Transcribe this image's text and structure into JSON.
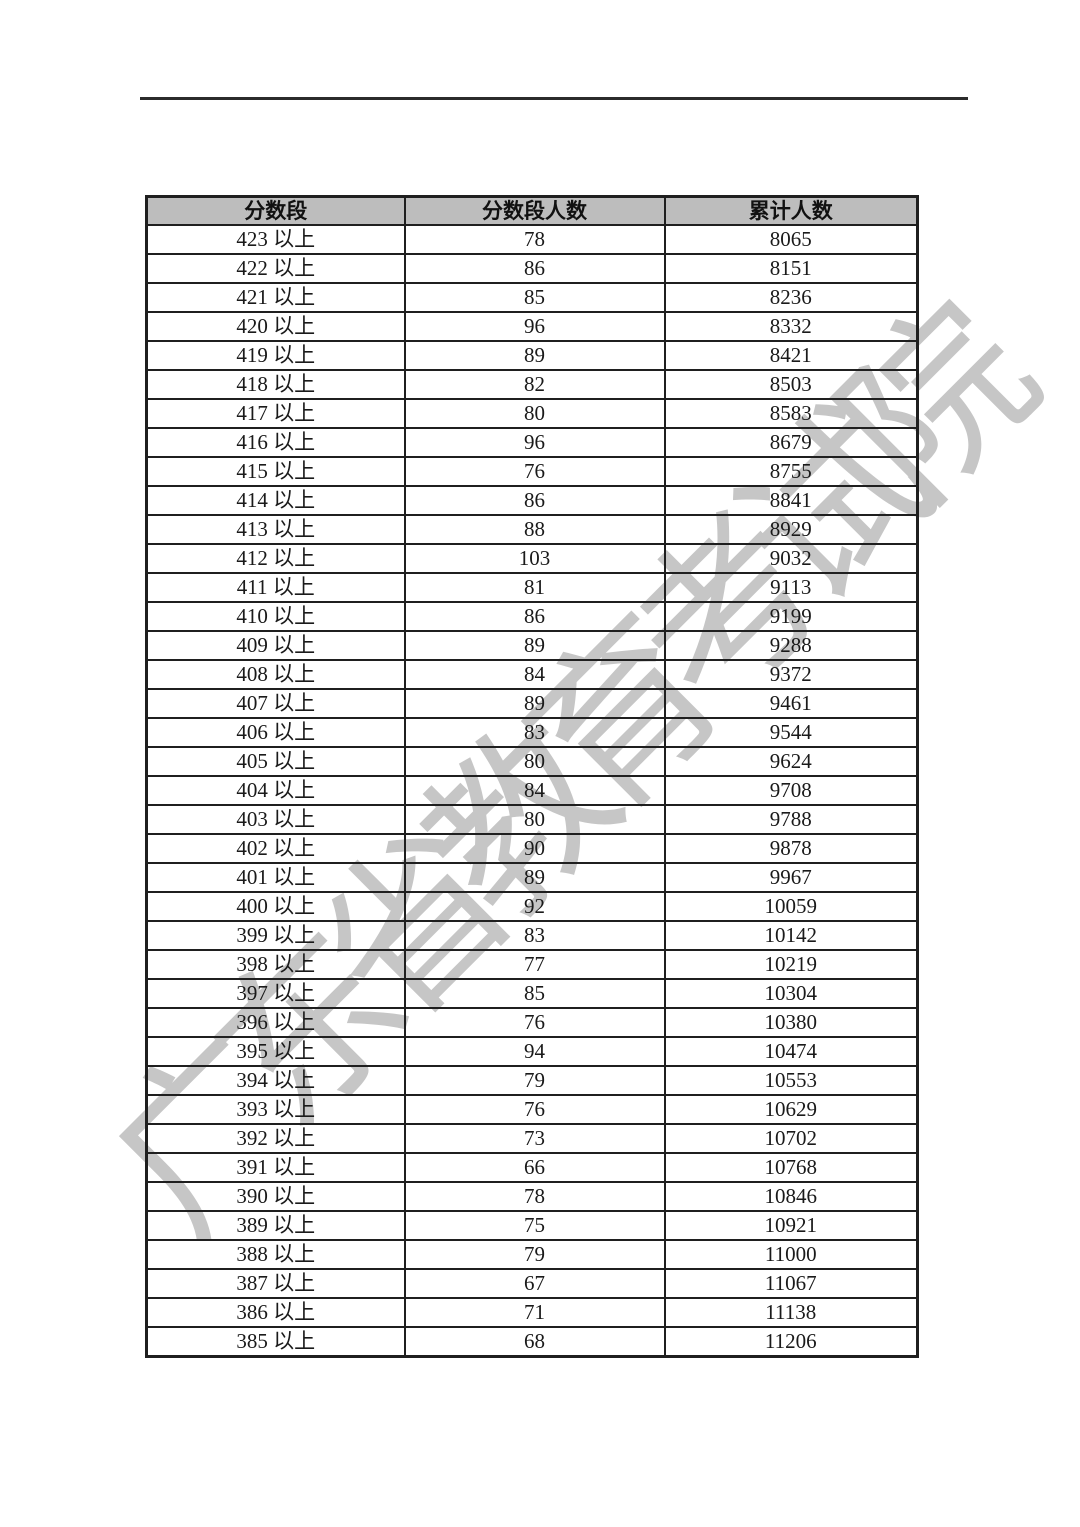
{
  "page": {
    "watermark_text": "广东省教育考试院"
  },
  "table": {
    "headers": [
      "分数段",
      "分数段人数",
      "累计人数"
    ],
    "rows": [
      [
        "423 以上",
        "78",
        "8065"
      ],
      [
        "422 以上",
        "86",
        "8151"
      ],
      [
        "421 以上",
        "85",
        "8236"
      ],
      [
        "420 以上",
        "96",
        "8332"
      ],
      [
        "419 以上",
        "89",
        "8421"
      ],
      [
        "418 以上",
        "82",
        "8503"
      ],
      [
        "417 以上",
        "80",
        "8583"
      ],
      [
        "416 以上",
        "96",
        "8679"
      ],
      [
        "415 以上",
        "76",
        "8755"
      ],
      [
        "414 以上",
        "86",
        "8841"
      ],
      [
        "413 以上",
        "88",
        "8929"
      ],
      [
        "412 以上",
        "103",
        "9032"
      ],
      [
        "411 以上",
        "81",
        "9113"
      ],
      [
        "410 以上",
        "86",
        "9199"
      ],
      [
        "409 以上",
        "89",
        "9288"
      ],
      [
        "408 以上",
        "84",
        "9372"
      ],
      [
        "407 以上",
        "89",
        "9461"
      ],
      [
        "406 以上",
        "83",
        "9544"
      ],
      [
        "405 以上",
        "80",
        "9624"
      ],
      [
        "404 以上",
        "84",
        "9708"
      ],
      [
        "403 以上",
        "80",
        "9788"
      ],
      [
        "402 以上",
        "90",
        "9878"
      ],
      [
        "401 以上",
        "89",
        "9967"
      ],
      [
        "400 以上",
        "92",
        "10059"
      ],
      [
        "399 以上",
        "83",
        "10142"
      ],
      [
        "398 以上",
        "77",
        "10219"
      ],
      [
        "397 以上",
        "85",
        "10304"
      ],
      [
        "396 以上",
        "76",
        "10380"
      ],
      [
        "395 以上",
        "94",
        "10474"
      ],
      [
        "394 以上",
        "79",
        "10553"
      ],
      [
        "393 以上",
        "76",
        "10629"
      ],
      [
        "392 以上",
        "73",
        "10702"
      ],
      [
        "391 以上",
        "66",
        "10768"
      ],
      [
        "390 以上",
        "78",
        "10846"
      ],
      [
        "389 以上",
        "75",
        "10921"
      ],
      [
        "388 以上",
        "79",
        "11000"
      ],
      [
        "387 以上",
        "67",
        "11067"
      ],
      [
        "386 以上",
        "71",
        "11138"
      ],
      [
        "385 以上",
        "68",
        "11206"
      ]
    ]
  },
  "colors": {
    "header_bg": "#bdbdbd",
    "border": "#1f1f1f",
    "watermark": "#c6c6c6",
    "rule": "#2b2b2b"
  }
}
